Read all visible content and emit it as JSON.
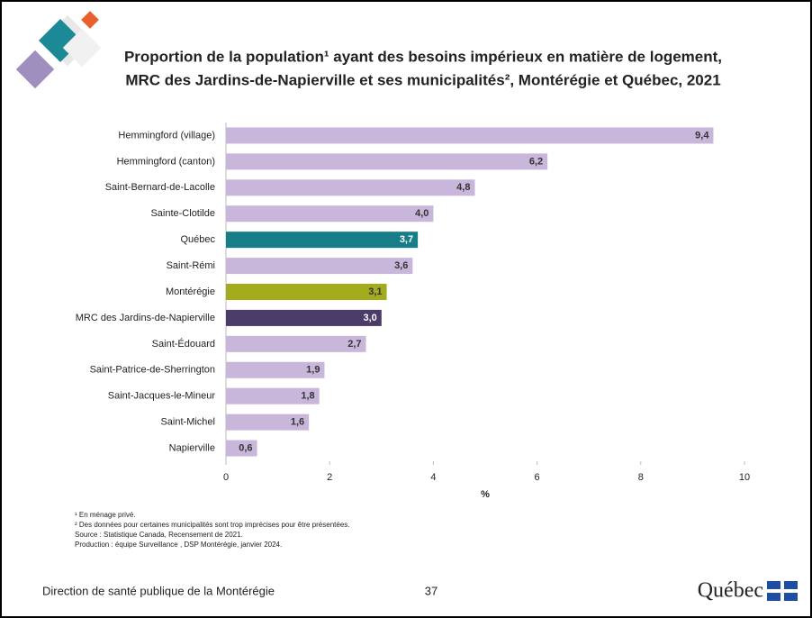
{
  "chart_data": {
    "type": "bar",
    "orientation": "horizontal",
    "title": [
      "Proportion de la population¹ ayant des besoins impérieux en matière de logement,",
      "MRC des Jardins-de-Napierville et ses municipalités², Montérégie et Québec, 2021"
    ],
    "categories": [
      "Hemmingford (village)",
      "Hemmingford (canton)",
      "Saint-Bernard-de-Lacolle",
      "Sainte-Clotilde",
      "Québec",
      "Saint-Rémi",
      "Montérégie",
      "MRC des Jardins-de-Napierville",
      "Saint-Édouard",
      "Saint-Patrice-de-Sherrington",
      "Saint-Jacques-le-Mineur",
      "Saint-Michel",
      "Napierville"
    ],
    "values": [
      9.4,
      6.2,
      4.8,
      4.0,
      3.7,
      3.6,
      3.1,
      3.0,
      2.7,
      1.9,
      1.8,
      1.6,
      0.6
    ],
    "value_labels": [
      "9,4",
      "6,2",
      "4,8",
      "4,0",
      "3,7",
      "3,6",
      "3,1",
      "3,0",
      "2,7",
      "1,9",
      "1,8",
      "1,6",
      "0,6"
    ],
    "colors": [
      "#c8b7db",
      "#c8b7db",
      "#c8b7db",
      "#c8b7db",
      "#177d89",
      "#c8b7db",
      "#a2ac1c",
      "#4b3b68",
      "#c8b7db",
      "#c8b7db",
      "#c8b7db",
      "#c8b7db",
      "#c8b7db"
    ],
    "xlabel": "%",
    "xlim": [
      0,
      10
    ],
    "xticks": [
      0,
      2,
      4,
      6,
      8,
      10
    ],
    "footnotes": [
      "¹ En ménage privé.",
      "² Des données pour certaines municipalités sont trop imprécises pour être présentées.",
      "Source : Statistique Canada, Recensement de 2021.",
      "Production : équipe Surveillance , DSP Montérégie, janvier 2024."
    ]
  },
  "footer": {
    "organization": "Direction de santé publique de la Montérégie",
    "page": "37",
    "logo": "Québec"
  }
}
